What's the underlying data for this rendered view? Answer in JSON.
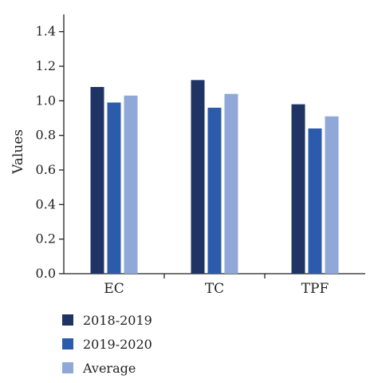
{
  "chart_data": {
    "type": "bar",
    "categories": [
      "EC",
      "TC",
      "TPF"
    ],
    "series": [
      {
        "name": "2018-2019",
        "values": [
          1.08,
          1.12,
          0.98
        ],
        "color": "#1f3464"
      },
      {
        "name": "2019-2020",
        "values": [
          0.99,
          0.96,
          0.84
        ],
        "color": "#2d5bab"
      },
      {
        "name": "Average",
        "values": [
          1.03,
          1.04,
          0.91
        ],
        "color": "#8fa8d8"
      }
    ],
    "xlabel": "",
    "ylabel": "Values",
    "ylim": [
      0,
      1.5
    ],
    "yticks": [
      "0.0",
      "0.2",
      "0.4",
      "0.6",
      "0.8",
      "1.0",
      "1.2",
      "1.4"
    ],
    "grid": false,
    "legend_position": "bottom-left"
  }
}
